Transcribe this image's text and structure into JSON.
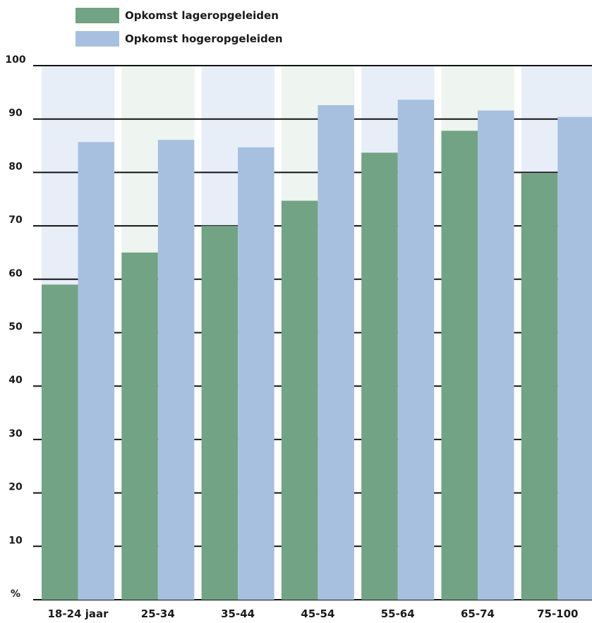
{
  "colors": {
    "low": "#72a384",
    "high": "#a8c0df",
    "band_blue": "#e8eef8",
    "band_green": "#eef4ef",
    "grid": "#111111"
  },
  "chart_data": {
    "type": "bar",
    "categories": [
      "18-24 jaar",
      "25-34",
      "35-44",
      "45-54",
      "55-64",
      "65-74",
      "75-100"
    ],
    "series": [
      {
        "name": "Opkomst lageropgeleiden",
        "values": [
          59,
          65,
          70,
          74.7,
          83.7,
          87.8,
          79.8
        ]
      },
      {
        "name": "Opkomst hogeropgeleiden",
        "values": [
          85.7,
          86.1,
          84.7,
          92.6,
          93.6,
          91.6,
          90.4
        ]
      }
    ],
    "yticks": [
      "%",
      "10",
      "20",
      "30",
      "40",
      "50",
      "60",
      "70",
      "80",
      "90",
      "100"
    ],
    "ylim": [
      0,
      100
    ],
    "grid": true,
    "legend_position": "top-left",
    "title": "",
    "xlabel": "",
    "ylabel": "%"
  }
}
